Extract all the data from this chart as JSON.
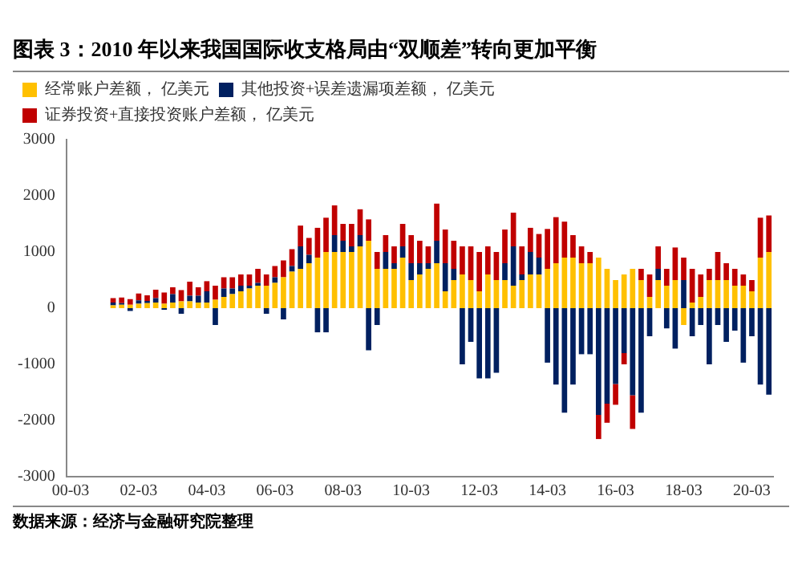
{
  "chart_data": {
    "type": "bar",
    "stacked": true,
    "title": "图表 3：2010 年以来我国国际收支格局由“双顺差”转向更加平衡",
    "annotations": [
      "数据来源：经济与金融研究院整理"
    ],
    "categories": [
      "00-03",
      null,
      null,
      null,
      null,
      null,
      null,
      null,
      "02-03",
      null,
      null,
      null,
      null,
      null,
      null,
      null,
      "04-03",
      null,
      null,
      null,
      null,
      null,
      null,
      null,
      "06-03",
      null,
      null,
      null,
      null,
      null,
      null,
      null,
      "08-03",
      null,
      null,
      null,
      null,
      null,
      null,
      null,
      "10-03",
      null,
      null,
      null,
      null,
      null,
      null,
      null,
      "12-03",
      null,
      null,
      null,
      null,
      null,
      null,
      null,
      "14-03",
      null,
      null,
      null,
      null,
      null,
      null,
      null,
      "16-03",
      null,
      null,
      null,
      null,
      null,
      null,
      null,
      "18-03",
      null,
      null,
      null,
      null,
      null,
      null,
      null,
      "20-03",
      null,
      null
    ],
    "series": [
      {
        "name": "经常账户差额， 亿美元",
        "color": "#ffc000",
        "values": [
          null,
          null,
          null,
          null,
          null,
          50,
          60,
          60,
          80,
          90,
          100,
          80,
          100,
          120,
          120,
          100,
          100,
          150,
          200,
          250,
          300,
          350,
          400,
          400,
          450,
          550,
          650,
          700,
          800,
          900,
          1000,
          1000,
          1000,
          1000,
          1100,
          1200,
          700,
          700,
          700,
          900,
          500,
          600,
          700,
          800,
          300,
          500,
          600,
          500,
          300,
          600,
          500,
          500,
          400,
          500,
          600,
          600,
          700,
          800,
          900,
          900,
          800,
          800,
          900,
          700,
          500,
          600,
          700,
          500,
          200,
          500,
          400,
          500,
          -300,
          100,
          200,
          500,
          500,
          500,
          400,
          400,
          300,
          900,
          1000
        ]
      },
      {
        "name": "其他投资+误差遗漏项差额， 亿美元",
        "color": "#002060",
        "values": [
          null,
          null,
          null,
          null,
          null,
          50,
          30,
          -50,
          60,
          40,
          80,
          -30,
          150,
          -100,
          100,
          120,
          200,
          -300,
          150,
          100,
          100,
          50,
          50,
          -100,
          100,
          -200,
          100,
          400,
          150,
          -430,
          -430,
          300,
          200,
          100,
          200,
          -750,
          -300,
          300,
          100,
          200,
          300,
          200,
          100,
          400,
          500,
          200,
          -1000,
          -600,
          -1250,
          -1250,
          -1150,
          300,
          700,
          100,
          400,
          300,
          -970,
          -1360,
          -1860,
          -1360,
          -820,
          -820,
          -1900,
          -1700,
          -1350,
          -800,
          -1550,
          -1860,
          -500,
          200,
          -360,
          -720,
          500,
          -500,
          -300,
          -1000,
          -300,
          -600,
          -400,
          -970,
          -500,
          -1360,
          -1540
        ]
      },
      {
        "name": "证券投资+直接投资账户差额， 亿美元",
        "color": "#c00000",
        "values": [
          null,
          null,
          null,
          null,
          null,
          80,
          100,
          100,
          120,
          100,
          150,
          200,
          120,
          200,
          250,
          150,
          180,
          250,
          200,
          200,
          200,
          200,
          250,
          200,
          200,
          300,
          300,
          370,
          300,
          530,
          610,
          530,
          300,
          400,
          460,
          380,
          300,
          300,
          300,
          400,
          500,
          400,
          300,
          660,
          600,
          500,
          500,
          600,
          700,
          500,
          500,
          600,
          600,
          500,
          430,
          420,
          710,
          820,
          640,
          400,
          300,
          200,
          -430,
          -340,
          -370,
          -200,
          -600,
          200,
          400,
          400,
          300,
          580,
          400,
          600,
          400,
          200,
          500,
          300,
          300,
          200,
          200,
          710,
          650
        ]
      }
    ],
    "ylim": [
      -3000,
      3000
    ],
    "yticks": [
      -3000,
      -2000,
      -1000,
      0,
      1000,
      2000,
      3000
    ],
    "grid": false,
    "legend": "top left"
  }
}
